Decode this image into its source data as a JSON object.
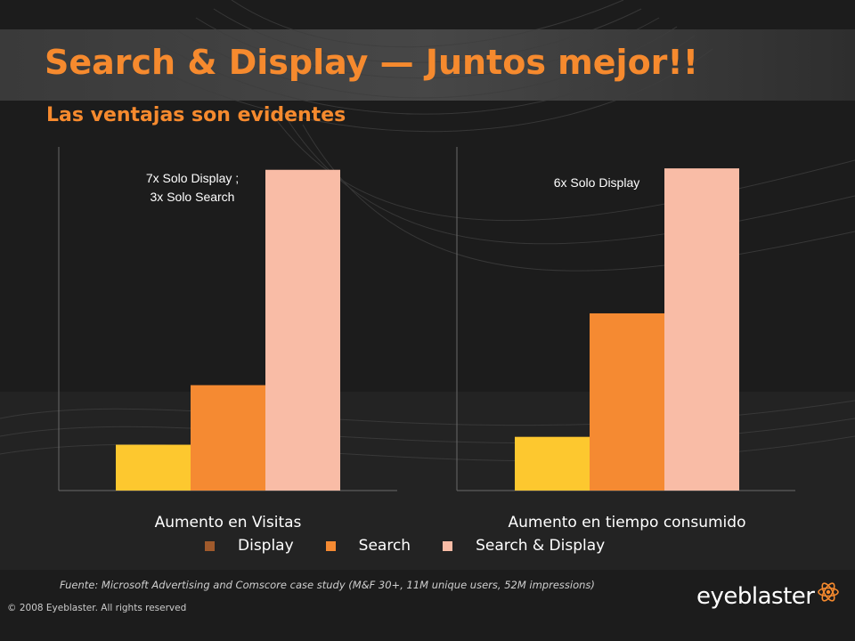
{
  "slide": {
    "title": "Search & Display — Juntos mejor!!",
    "subtitle": "Las ventajas son evidentes",
    "source": "Fuente:  Microsoft Advertising and Comscore case study (M&F 30+, 11M unique users, 52M impressions)",
    "copyright": "© 2008 Eyeblaster. All rights reserved",
    "logo_text": "eyeblaster",
    "logo_icon": "atom-icon"
  },
  "colors": {
    "accent": "#f68a2e",
    "display": "#fdc82f",
    "search": "#f58a32",
    "search_display": "#f9bca6",
    "legend_display": "#a05a2c",
    "background": "#1c1c1c"
  },
  "chart_data": [
    {
      "type": "bar",
      "xlabel": "Aumento en Visitas",
      "series": [
        {
          "name": "Display",
          "values": [
            1
          ]
        },
        {
          "name": "Search",
          "values": [
            2.3
          ]
        },
        {
          "name": "Search & Display",
          "values": [
            7
          ]
        }
      ],
      "annotation": [
        "7x  Solo Display ;",
        "3x  Solo Search"
      ],
      "ylim": [
        0,
        7.5
      ],
      "grid": false
    },
    {
      "type": "bar",
      "xlabel": "Aumento en tiempo consumido",
      "series": [
        {
          "name": "Display",
          "values": [
            1
          ]
        },
        {
          "name": "Search",
          "values": [
            3.3
          ]
        },
        {
          "name": "Search & Display",
          "values": [
            6
          ]
        }
      ],
      "annotation": [
        "6x Solo Display"
      ],
      "ylim": [
        0,
        6.4
      ],
      "grid": false
    }
  ],
  "legend": [
    {
      "label": "Display",
      "color": "#a05a2c"
    },
    {
      "label": "Search",
      "color": "#f58a32"
    },
    {
      "label": "Search & Display",
      "color": "#f9bca6"
    }
  ]
}
